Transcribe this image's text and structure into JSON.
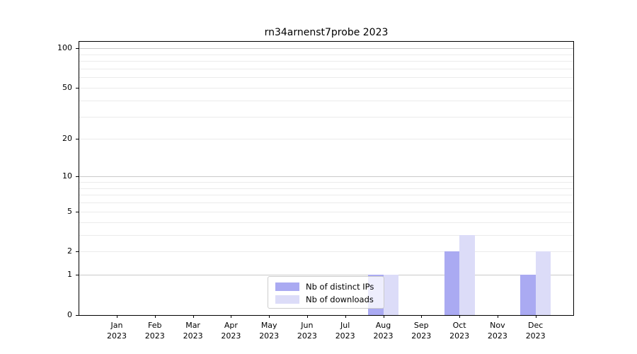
{
  "chart_data": {
    "type": "bar",
    "title": "rn34arnenst7probe 2023",
    "categories": [
      "Jan",
      "Feb",
      "Mar",
      "Apr",
      "May",
      "Jun",
      "Jul",
      "Aug",
      "Sep",
      "Oct",
      "Nov",
      "Dec"
    ],
    "category_sublabel": "2023",
    "series": [
      {
        "name": "Nb of distinct IPs",
        "color": "#aaaaf2",
        "values": [
          0,
          0,
          0,
          0,
          0,
          0,
          0,
          1,
          0,
          2,
          0,
          1
        ]
      },
      {
        "name": "Nb of downloads",
        "color": "#dcdcf8",
        "values": [
          0,
          0,
          0,
          0,
          0,
          0,
          0,
          1,
          0,
          3,
          0,
          2
        ]
      }
    ],
    "y_axis": {
      "scale": "log1p",
      "tick_labels": [
        0,
        1,
        2,
        5,
        10,
        20,
        50,
        100
      ],
      "top_value": 112,
      "major_gridlines": [
        1,
        10,
        100
      ],
      "minor_gridlines": [
        2,
        3,
        4,
        5,
        6,
        7,
        8,
        9,
        20,
        30,
        40,
        50,
        60,
        70,
        80,
        90
      ]
    },
    "xlabel": "",
    "ylabel": "",
    "ylim": [
      0,
      112
    ],
    "grid": true,
    "legend_position": "bottom-center"
  },
  "colors": {
    "background": "#ffffff",
    "axis_frame": "#000000",
    "grid_major": "#c9c9c9",
    "grid_minor": "#ebebeb",
    "legend_border": "#cccccc",
    "series_ips": "#aaaaf2",
    "series_downloads": "#dcdcf8"
  }
}
